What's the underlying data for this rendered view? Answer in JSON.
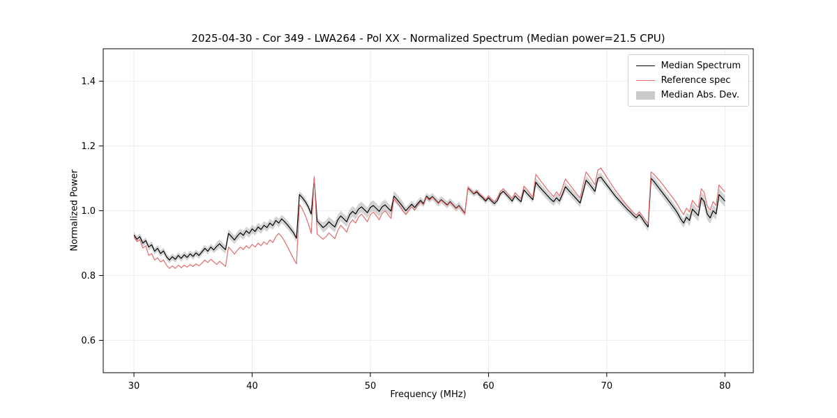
{
  "chart_data": {
    "type": "line",
    "title": "2025-04-30 - Cor 349 - LWA264 - Pol XX - Normalized Spectrum (Median power=21.5 CPU)",
    "xlabel": "Frequency (MHz)",
    "ylabel": "Normalized Power",
    "xlim": [
      27.4,
      82.4
    ],
    "ylim": [
      0.5,
      1.5
    ],
    "xticks": [
      30,
      40,
      50,
      60,
      70,
      80
    ],
    "xtick_labels": [
      "30",
      "40",
      "50",
      "60",
      "70",
      "80"
    ],
    "yticks": [
      0.6,
      0.8,
      1.0,
      1.2,
      1.4
    ],
    "ytick_labels": [
      "0.6",
      "0.8",
      "1.0",
      "1.2",
      "1.4"
    ],
    "grid": true,
    "legend_position": "upper right",
    "x": {
      "start": 30.0,
      "step": 0.25,
      "count": 201
    },
    "series": [
      {
        "name": "Median Spectrum",
        "color": "#000000",
        "values": [
          0.925,
          0.912,
          0.92,
          0.9,
          0.908,
          0.888,
          0.895,
          0.875,
          0.884,
          0.868,
          0.876,
          0.858,
          0.848,
          0.858,
          0.85,
          0.862,
          0.853,
          0.864,
          0.856,
          0.867,
          0.859,
          0.87,
          0.862,
          0.873,
          0.884,
          0.875,
          0.888,
          0.879,
          0.89,
          0.898,
          0.888,
          0.88,
          0.93,
          0.92,
          0.91,
          0.922,
          0.932,
          0.924,
          0.938,
          0.93,
          0.944,
          0.936,
          0.95,
          0.942,
          0.955,
          0.948,
          0.962,
          0.954,
          0.97,
          0.962,
          0.975,
          0.966,
          0.956,
          0.944,
          0.932,
          0.915,
          1.05,
          1.04,
          1.028,
          1.012,
          0.99,
          1.1,
          0.968,
          0.958,
          0.948,
          0.955,
          0.966,
          0.957,
          0.95,
          0.972,
          0.984,
          0.975,
          0.966,
          0.988,
          0.998,
          0.99,
          1.005,
          1.012,
          1.003,
          0.994,
          1.01,
          1.016,
          1.007,
          0.998,
          1.012,
          1.018,
          1.008,
          0.999,
          1.045,
          1.035,
          1.024,
          1.012,
          1.0,
          1.01,
          1.02,
          1.01,
          1.022,
          1.032,
          1.022,
          1.045,
          1.036,
          1.044,
          1.034,
          1.024,
          1.034,
          1.026,
          1.018,
          1.028,
          1.018,
          1.008,
          1.016,
          1.004,
          0.992,
          1.07,
          1.062,
          1.052,
          1.058,
          1.048,
          1.04,
          1.03,
          1.04,
          1.03,
          1.022,
          1.032,
          1.052,
          1.06,
          1.05,
          1.04,
          1.03,
          1.046,
          1.036,
          1.028,
          1.064,
          1.054,
          1.044,
          1.034,
          1.088,
          1.076,
          1.066,
          1.056,
          1.046,
          1.036,
          1.028,
          1.04,
          1.03,
          1.05,
          1.074,
          1.064,
          1.054,
          1.044,
          1.034,
          1.024,
          1.058,
          1.094,
          1.084,
          1.072,
          1.06,
          1.1,
          1.104,
          1.092,
          1.08,
          1.068,
          1.056,
          1.044,
          1.034,
          1.024,
          1.014,
          1.004,
          0.996,
          0.986,
          0.978,
          0.988,
          0.976,
          0.962,
          0.95,
          1.1,
          1.09,
          1.078,
          1.066,
          1.054,
          1.042,
          1.03,
          1.018,
          1.006,
          0.992,
          0.975,
          0.962,
          0.98,
          0.97,
          1.005,
          0.995,
          0.985,
          1.04,
          1.028,
          0.99,
          0.978,
          1.0,
          0.99,
          1.05,
          1.04,
          1.03
        ]
      },
      {
        "name": "Reference spec",
        "color": "#e26b6b",
        "values": [
          0.92,
          0.905,
          0.91,
          0.885,
          0.892,
          0.862,
          0.868,
          0.848,
          0.855,
          0.842,
          0.848,
          0.832,
          0.822,
          0.83,
          0.822,
          0.832,
          0.824,
          0.832,
          0.826,
          0.834,
          0.828,
          0.836,
          0.83,
          0.838,
          0.848,
          0.84,
          0.85,
          0.842,
          0.834,
          0.844,
          0.836,
          0.828,
          0.888,
          0.878,
          0.866,
          0.878,
          0.888,
          0.88,
          0.892,
          0.884,
          0.896,
          0.888,
          0.9,
          0.892,
          0.904,
          0.896,
          0.91,
          0.902,
          0.92,
          0.93,
          0.92,
          0.905,
          0.888,
          0.87,
          0.852,
          0.836,
          1.02,
          1.005,
          0.985,
          0.96,
          0.93,
          1.105,
          0.928,
          0.92,
          0.912,
          0.92,
          0.932,
          0.922,
          0.914,
          0.94,
          0.955,
          0.945,
          0.934,
          0.96,
          0.972,
          0.962,
          0.98,
          0.99,
          0.978,
          0.966,
          0.988,
          0.996,
          0.985,
          0.972,
          0.992,
          1.0,
          0.988,
          0.976,
          1.038,
          1.026,
          1.014,
          1.0,
          0.988,
          1.0,
          1.012,
          1.002,
          1.016,
          1.028,
          1.018,
          1.042,
          1.032,
          1.042,
          1.032,
          1.022,
          1.032,
          1.024,
          1.016,
          1.026,
          1.016,
          1.006,
          1.014,
          1.002,
          0.99,
          1.072,
          1.064,
          1.054,
          1.062,
          1.052,
          1.044,
          1.034,
          1.046,
          1.036,
          1.028,
          1.04,
          1.06,
          1.068,
          1.058,
          1.048,
          1.038,
          1.056,
          1.046,
          1.038,
          1.076,
          1.066,
          1.054,
          1.042,
          1.112,
          1.1,
          1.088,
          1.076,
          1.064,
          1.054,
          1.044,
          1.058,
          1.046,
          1.07,
          1.098,
          1.086,
          1.074,
          1.062,
          1.05,
          1.04,
          1.08,
          1.12,
          1.108,
          1.094,
          1.08,
          1.126,
          1.132,
          1.118,
          1.104,
          1.09,
          1.076,
          1.062,
          1.05,
          1.038,
          1.026,
          1.015,
          1.005,
          0.995,
          0.986,
          0.997,
          0.985,
          0.972,
          0.96,
          1.12,
          1.112,
          1.102,
          1.092,
          1.08,
          1.068,
          1.056,
          1.044,
          1.032,
          1.018,
          1.002,
          0.988,
          1.008,
          0.996,
          1.032,
          1.02,
          1.01,
          1.068,
          1.056,
          1.015,
          1.002,
          1.028,
          1.016,
          1.08,
          1.068,
          1.058
        ]
      }
    ],
    "band": {
      "name": "Median Abs. Dev.",
      "color": "#9e9e9e",
      "alpha": 0.45,
      "around_series": "Median Spectrum",
      "segments": [
        {
          "from": 30.0,
          "to": 37.0,
          "value": 0.01
        },
        {
          "from": 37.0,
          "to": 44.0,
          "value": 0.013
        },
        {
          "from": 44.0,
          "to": 46.0,
          "value": 0.011
        },
        {
          "from": 46.0,
          "to": 53.0,
          "value": 0.016
        },
        {
          "from": 53.0,
          "to": 58.0,
          "value": 0.011
        },
        {
          "from": 58.0,
          "to": 64.0,
          "value": 0.009
        },
        {
          "from": 64.0,
          "to": 70.0,
          "value": 0.013
        },
        {
          "from": 70.0,
          "to": 73.5,
          "value": 0.011
        },
        {
          "from": 73.5,
          "to": 77.0,
          "value": 0.014
        },
        {
          "from": 77.0,
          "to": 80.1,
          "value": 0.018
        }
      ]
    }
  }
}
